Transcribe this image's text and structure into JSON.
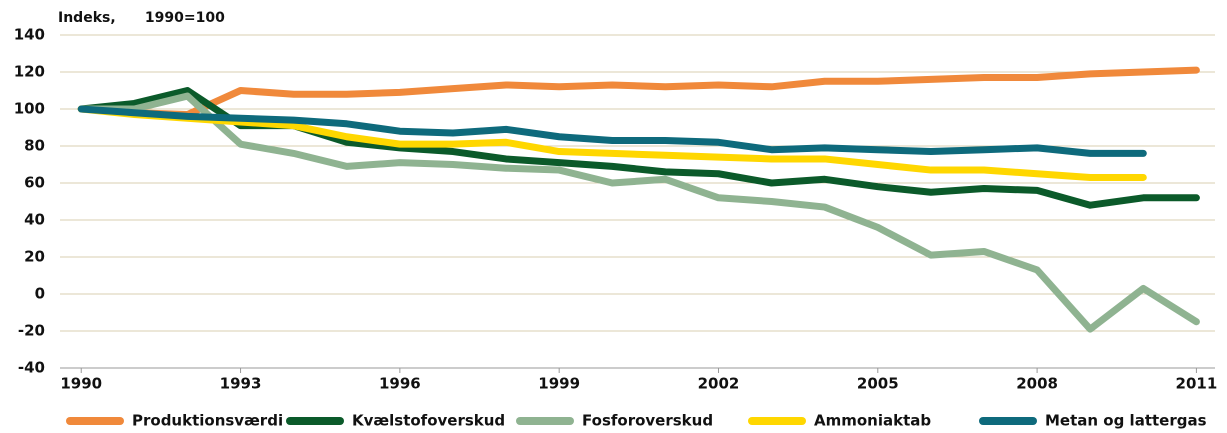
{
  "chart_data": {
    "type": "line",
    "title": "Indeks,      1990=100",
    "x": [
      1990,
      1991,
      1992,
      1993,
      1994,
      1995,
      1996,
      1997,
      1998,
      1999,
      2000,
      2001,
      2002,
      2003,
      2004,
      2005,
      2006,
      2007,
      2008,
      2009,
      2010,
      2011
    ],
    "series": [
      {
        "name": "Produktionsværdi",
        "color": "#f0893b",
        "values": [
          100,
          98,
          97,
          110,
          108,
          108,
          109,
          111,
          113,
          112,
          113,
          112,
          113,
          112,
          115,
          115,
          116,
          117,
          117,
          119,
          120,
          121
        ]
      },
      {
        "name": "Kvælstofoverskud",
        "color": "#0b5a2a",
        "values": [
          100,
          103,
          110,
          91,
          91,
          82,
          79,
          77,
          73,
          71,
          69,
          66,
          65,
          60,
          62,
          58,
          55,
          57,
          56,
          48,
          52,
          52
        ]
      },
      {
        "name": "Fosforoverskud",
        "color": "#8fb391",
        "values": [
          100,
          100,
          107,
          81,
          76,
          69,
          71,
          70,
          68,
          67,
          60,
          62,
          52,
          50,
          47,
          36,
          21,
          23,
          13,
          -19,
          3,
          -15
        ]
      },
      {
        "name": "Ammoniaktab",
        "color": "#ffd700",
        "values": [
          100,
          97,
          95,
          93,
          91,
          85,
          81,
          81,
          82,
          77,
          76,
          75,
          74,
          73,
          73,
          70,
          67,
          67,
          65,
          63,
          63,
          null
        ]
      },
      {
        "name": "Metan og lattergas",
        "color": "#0e6a7c",
        "values": [
          100,
          98,
          96,
          95,
          94,
          92,
          88,
          87,
          89,
          85,
          83,
          83,
          82,
          78,
          79,
          78,
          77,
          78,
          79,
          76,
          76,
          null
        ]
      }
    ],
    "xlim": [
      1989.6,
      2011.35
    ],
    "xticks": [
      1990,
      1993,
      1996,
      1999,
      2002,
      2005,
      2008,
      2011
    ],
    "ylim": [
      -40,
      140
    ],
    "yticks": [
      -40,
      -20,
      0,
      20,
      40,
      60,
      80,
      100,
      120,
      140
    ],
    "grid": true,
    "legend": "bottom"
  }
}
